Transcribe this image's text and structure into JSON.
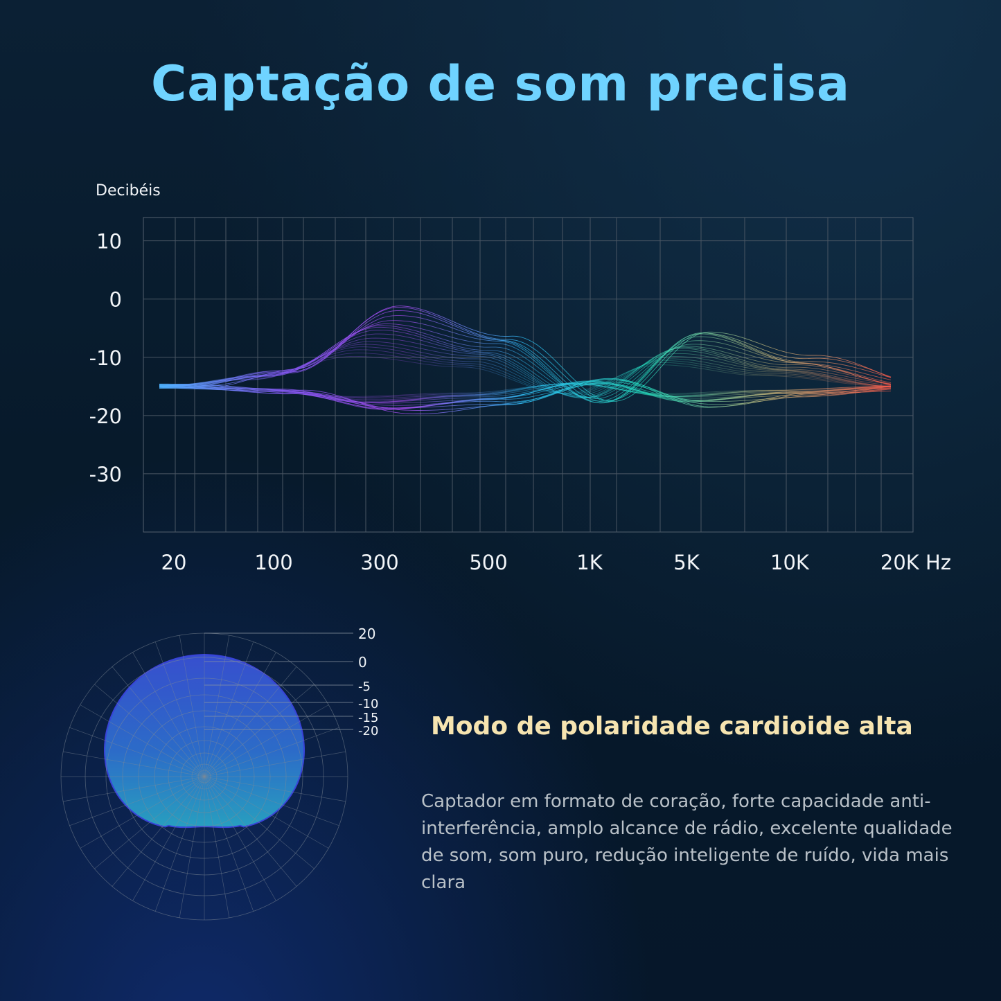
{
  "page": {
    "title": "Captação de som precisa"
  },
  "chart_data": [
    {
      "type": "line",
      "title": "",
      "ylabel": "Decibéis",
      "xlabel": "",
      "x_unit_label": "20K Hz",
      "x_ticks": [
        "20",
        "100",
        "300",
        "500",
        "1K",
        "5K",
        "10K",
        "20K Hz"
      ],
      "y_ticks": [
        "10",
        "0",
        "-10",
        "-20",
        "-30"
      ],
      "ylim": [
        -40,
        14
      ],
      "grid": true,
      "series": [
        {
          "x": [
            "20",
            "100",
            "300",
            "500",
            "1K",
            "5K",
            "10K",
            "20K Hz"
          ],
          "values": [
            -15,
            -12,
            -1,
            -6,
            -18,
            -5,
            -10,
            -15
          ]
        }
      ],
      "colors": [
        "#4fb3ff",
        "#8a5cff",
        "#b24dff",
        "#2ec6ff",
        "#26e0c0",
        "#c8b87a",
        "#ff5a4a"
      ]
    },
    {
      "type": "polar",
      "pattern": "cardioid",
      "r_ticks": [
        "20",
        "0",
        "-5",
        "-10",
        "-15",
        "-20"
      ],
      "fill_color": "#2a6fd0"
    }
  ],
  "polar_section": {
    "heading": "Modo de polaridade cardioide alta",
    "description": "Captador em formato de coração, forte capacidade anti-interferência, amplo alcance de rádio, excelente qualidade de som, som puro, redução inteligente de ruído, vida mais clara"
  }
}
